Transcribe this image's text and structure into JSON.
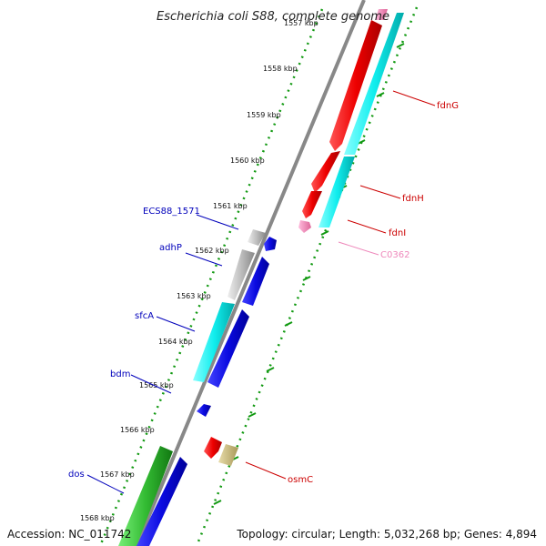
{
  "title": "Escherichia coli S88, complete genome",
  "footer": {
    "accession": "Accession: NC_011742",
    "topology": "Topology: circular; Length: 5,032,268 bp; Genes: 4,894"
  },
  "colors": {
    "red": "#ee0000",
    "cyan": "#11eeee",
    "blue": "#0a0ae0",
    "gray": "#bdbdbd",
    "green": "#33bb33",
    "pink": "#ee88bb",
    "tan": "#c8b878",
    "backbone": "#888888",
    "dots": "#119911",
    "label_blue": "#0000bb",
    "label_red": "#cc0000",
    "label_pink": "#ee88bb"
  },
  "kbp_ticks": [
    "1557 kbp",
    "1558 kbp",
    "1559 kbp",
    "1560 kbp",
    "1561 kbp",
    "1562 kbp",
    "1563 kbp",
    "1564 kbp",
    "1565 kbp",
    "1566 kbp",
    "1567 kbp",
    "1568 kbp"
  ],
  "genes": [
    {
      "name": "fdnG",
      "strand": "forward",
      "color": "red"
    },
    {
      "name": "fdnH",
      "strand": "forward",
      "color": "red"
    },
    {
      "name": "fdnI",
      "strand": "forward",
      "color": "red"
    },
    {
      "name": "C0362",
      "strand": "forward",
      "color": "pink"
    },
    {
      "name": "ECS88_1571",
      "strand": "reverse",
      "color": "blue"
    },
    {
      "name": "adhP",
      "strand": "reverse",
      "color": "blue"
    },
    {
      "name": "sfcA",
      "strand": "reverse",
      "color": "blue"
    },
    {
      "name": "bdm",
      "strand": "reverse",
      "color": "blue"
    },
    {
      "name": "osmC",
      "strand": "forward",
      "color": "red"
    },
    {
      "name": "dos",
      "strand": "reverse",
      "color": "blue"
    }
  ]
}
